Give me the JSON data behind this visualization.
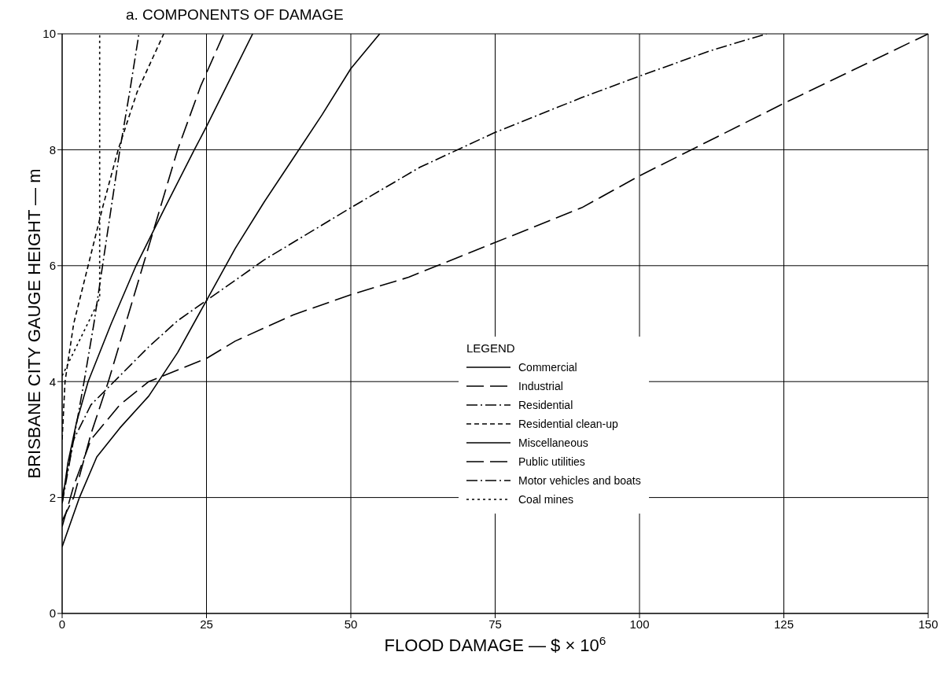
{
  "chart_data": {
    "type": "line",
    "title": "a. COMPONENTS OF DAMAGE",
    "xlabel": "FLOOD DAMAGE — $ × 10$^{6}$",
    "ylabel": "BRISBANE CITY GAUGE HEIGHT — m",
    "legend_title": "LEGEND",
    "xlim": [
      0,
      150
    ],
    "xticks": [
      0,
      25,
      50,
      75,
      100,
      125,
      150
    ],
    "ylim": [
      0,
      10
    ],
    "yticks": [
      0,
      2,
      4,
      6,
      8,
      10
    ],
    "grid": true,
    "legend": "bottom right",
    "series": [
      {
        "name": "Commercial",
        "color": "#000000",
        "line_style": "solid",
        "x": [
          0,
          3,
          6,
          10,
          15,
          20,
          25,
          30,
          35,
          40,
          45,
          50,
          55
        ],
        "values": [
          1.15,
          2,
          2.7,
          3.2,
          3.75,
          4.5,
          5.4,
          6.3,
          7.1,
          7.85,
          8.6,
          9.4,
          10
        ]
      },
      {
        "name": "Industrial",
        "color": "#000000",
        "line_style": "longdash",
        "x": [
          0,
          2,
          5,
          10,
          15,
          20,
          25,
          30,
          40,
          50,
          60,
          65,
          75,
          90,
          100,
          110,
          125,
          150
        ],
        "values": [
          1.5,
          2.2,
          3,
          3.6,
          4.0,
          4.2,
          4.4,
          4.7,
          5.15,
          5.5,
          5.8,
          6.0,
          6.4,
          7.0,
          7.55,
          8.05,
          8.8,
          10
        ]
      },
      {
        "name": "Residential",
        "color": "#000000",
        "line_style": "dashdot",
        "x": [
          0,
          2,
          5,
          10,
          15,
          20,
          25,
          35,
          50,
          62,
          75,
          90,
          100,
          112,
          122
        ],
        "values": [
          1.9,
          3,
          3.6,
          4.1,
          4.6,
          5.05,
          5.4,
          6.1,
          7.0,
          7.7,
          8.3,
          8.9,
          9.27,
          9.7,
          10
        ]
      },
      {
        "name": "Residential clean-up",
        "color": "#000000",
        "line_style": "dashed",
        "x": [
          0,
          0.5,
          2,
          4.5,
          7,
          9.7,
          13,
          17.6
        ],
        "values": [
          3,
          4,
          5,
          6,
          7,
          8,
          9,
          10
        ]
      },
      {
        "name": "Miscellaneous",
        "color": "#000000",
        "line_style": "solid",
        "x": [
          0,
          1,
          2.5,
          4.5,
          8.5,
          12.8,
          17.8,
          22.9,
          25,
          29,
          33
        ],
        "values": [
          1.9,
          2.6,
          3.3,
          4,
          5,
          6,
          7,
          8,
          8.4,
          9.2,
          10
        ]
      },
      {
        "name": "Public utilities",
        "color": "#000000",
        "line_style": "longdash",
        "x": [
          0,
          2,
          5,
          8,
          11,
          14,
          17,
          20,
          24,
          28
        ],
        "values": [
          1.6,
          2,
          3.1,
          4,
          5,
          6,
          7,
          8,
          9.1,
          10
        ]
      },
      {
        "name": "Motor vehicles and boats",
        "color": "#000000",
        "line_style": "dashdot",
        "x": [
          0,
          2,
          3.8,
          5.5,
          7,
          8.5,
          10,
          11.7,
          13.3
        ],
        "values": [
          2,
          3,
          4,
          5,
          6,
          7,
          8,
          9,
          10
        ]
      },
      {
        "name": "Coal mines",
        "color": "#000000",
        "line_style": "dotted",
        "x": [
          0,
          5.9,
          6.5,
          6.5
        ],
        "values": [
          4.1,
          5.3,
          5.45,
          10
        ]
      }
    ]
  }
}
